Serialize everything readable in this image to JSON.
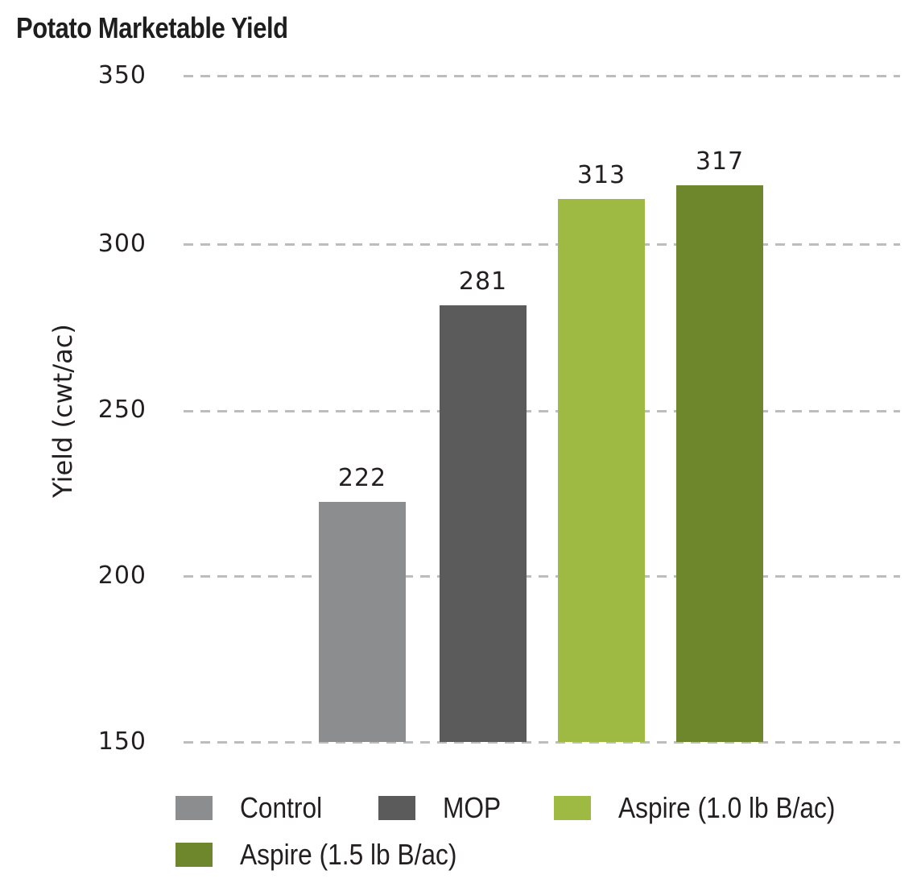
{
  "chart_data": {
    "type": "bar",
    "title": "Potato Marketable Yield",
    "xlabel": "",
    "ylabel": "Yield (cwt/ac)",
    "ylim": [
      150,
      350
    ],
    "yticks": [
      150,
      200,
      250,
      300,
      350
    ],
    "grid": true,
    "grid_style": "dashed horizontal",
    "legend_position": "bottom",
    "categories": [
      "Control",
      "MOP",
      "Aspire (1.0 lb B/ac)",
      "Aspire (1.5 lb B/ac)"
    ],
    "values": [
      222,
      281,
      313,
      317
    ],
    "colors": [
      "#8c8d8f",
      "#5a5b5a",
      "#9fba43",
      "#6e872d"
    ],
    "data_labels": [
      "222",
      "281",
      "313",
      "317"
    ]
  },
  "title": "Potato Marketable Yield",
  "y_axis": {
    "label": "Yield (cwt/ac)",
    "ticks": [
      "350",
      "300",
      "250",
      "200",
      "150"
    ]
  },
  "bars": [
    {
      "name": "Control",
      "value": 222,
      "label": "222",
      "color": "#8c8d8f"
    },
    {
      "name": "MOP",
      "value": 281,
      "label": "281",
      "color": "#5a5b5a"
    },
    {
      "name": "Aspire (1.0 lb B/ac)",
      "value": 313,
      "label": "313",
      "color": "#9fba43"
    },
    {
      "name": "Aspire (1.5 lb B/ac)",
      "value": 317,
      "label": "317",
      "color": "#6e872d"
    }
  ],
  "legend": {
    "items": [
      {
        "label": "Control",
        "color": "#8c8d8f"
      },
      {
        "label": "MOP",
        "color": "#5a5b5a"
      },
      {
        "label": "Aspire (1.0 lb B/ac)",
        "color": "#9fba43"
      },
      {
        "label": "Aspire (1.5 lb B/ac)",
        "color": "#6e872d"
      }
    ]
  }
}
